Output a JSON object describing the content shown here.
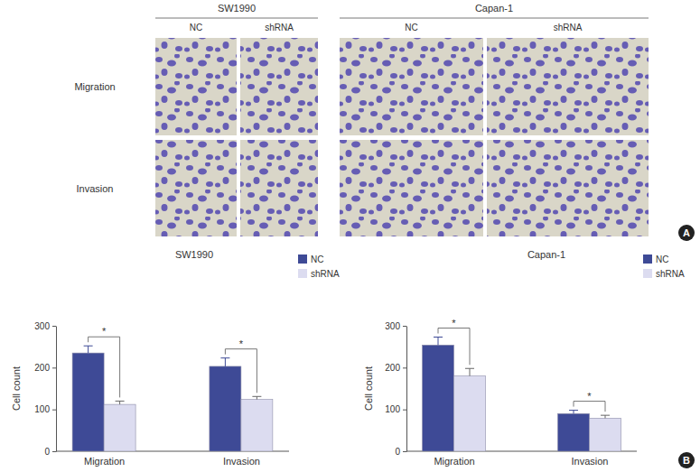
{
  "figure": {
    "panel_a": {
      "label": "A",
      "groups": [
        {
          "name": "SW1990",
          "conditions": [
            "NC",
            "shRNA"
          ]
        },
        {
          "name": "Capan-1",
          "conditions": [
            "NC",
            "shRNA"
          ]
        }
      ],
      "rows": [
        "Migration",
        "Invasion"
      ]
    },
    "panel_b_label": "B"
  },
  "chart_data": [
    {
      "type": "bar",
      "title": "SW1990",
      "ylabel": "Cell count",
      "categories": [
        "Migration",
        "Invasion"
      ],
      "series": [
        {
          "name": "NC",
          "color": "#3e4a96",
          "values": [
            235,
            203
          ],
          "errors": [
            17,
            20
          ]
        },
        {
          "name": "shRNA",
          "color": "#dcdcf0",
          "values": [
            112,
            124
          ],
          "errors": [
            8,
            7
          ]
        }
      ],
      "ylim": [
        0,
        300
      ],
      "yticks": [
        0,
        100,
        200,
        300
      ],
      "legend": "upper right",
      "annotations": [
        "*",
        "*"
      ]
    },
    {
      "type": "bar",
      "title": "Capan-1",
      "ylabel": "Cell count",
      "categories": [
        "Migration",
        "Invasion"
      ],
      "series": [
        {
          "name": "NC",
          "color": "#3e4a96",
          "values": [
            254,
            90
          ],
          "errors": [
            19,
            8
          ]
        },
        {
          "name": "shRNA",
          "color": "#dcdcf0",
          "values": [
            180,
            79
          ],
          "errors": [
            18,
            7
          ]
        }
      ],
      "ylim": [
        0,
        300
      ],
      "yticks": [
        0,
        100,
        200,
        300
      ],
      "legend": "upper right",
      "annotations": [
        "*",
        "*"
      ]
    }
  ]
}
